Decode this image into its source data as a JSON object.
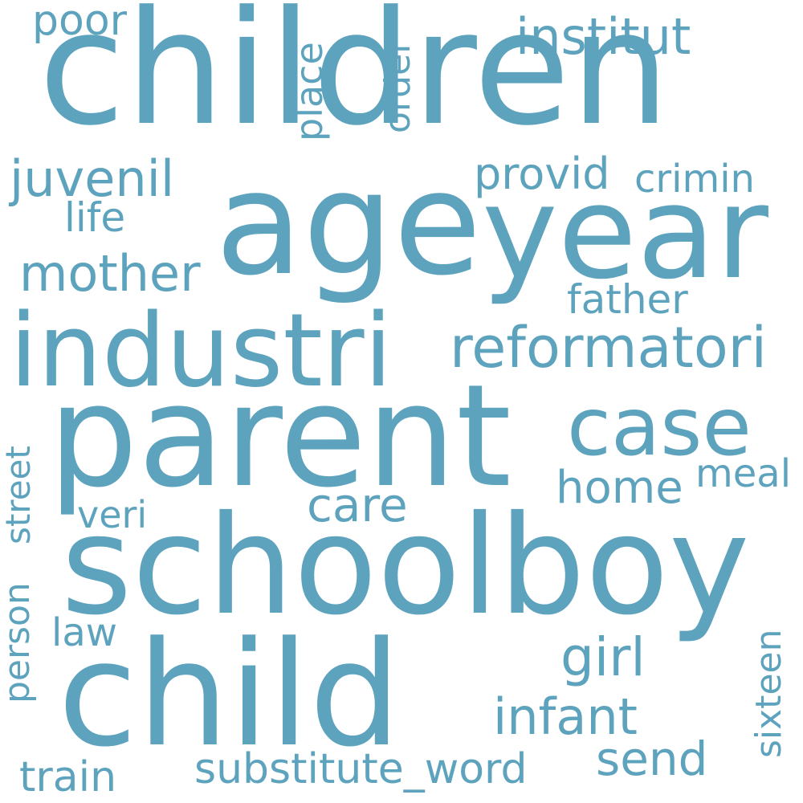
{
  "colors": {
    "word": "#5ea3bd",
    "background": "#ffffff"
  },
  "words": {
    "children": "children",
    "age": "age",
    "year": "year",
    "industri": "industri",
    "parent": "parent",
    "schoolboy": "schoolboy",
    "child": "child",
    "case": "case",
    "reformatori": "reformatori",
    "institut": "institut",
    "poor": "poor",
    "place": "place",
    "order": "order",
    "juvenil": "juvenil",
    "provid": "provid",
    "crimin": "crimin",
    "life": "life",
    "mother": "mother",
    "father": "father",
    "street": "street",
    "person": "person",
    "home": "home",
    "meal": "meal",
    "care": "care",
    "veri": "veri",
    "law": "law",
    "girl": "girl",
    "sixteen": "sixteen",
    "infant": "infant",
    "send": "send",
    "substitute_word": "substitute_word",
    "train": "train"
  }
}
